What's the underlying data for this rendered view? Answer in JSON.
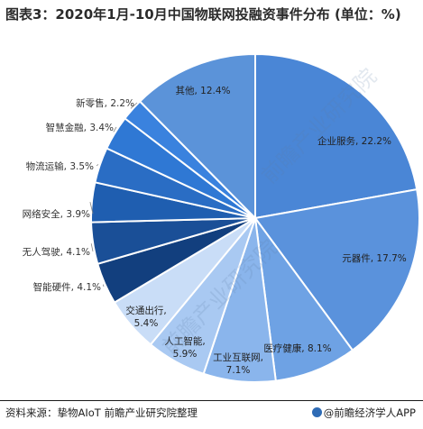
{
  "title": "图表3：2020年1月-10月中国物联网投融资事件分布 (单位：%)",
  "source": "资料来源：挚物AIoT 前瞻产业研究院整理",
  "credit": "@前瞻经济学人APP",
  "chart_data": {
    "type": "pie",
    "title": "图表3：2020年1月-10月中国物联网投融资事件分布 (单位：%)",
    "unit": "%",
    "start_angle_deg": 0,
    "direction": "clockwise",
    "slices": [
      {
        "label": "企业服务, 22.2%",
        "name": "企业服务",
        "value": 22.2,
        "color": "#4a86d6"
      },
      {
        "label": "元器件, 17.7%",
        "name": "元器件",
        "value": 17.7,
        "color": "#5a92dc"
      },
      {
        "label": "医疗健康, 8.1%",
        "name": "医疗健康",
        "value": 8.1,
        "color": "#6ea2e4"
      },
      {
        "label": "工业互联网, 7.1%",
        "name": "工业互联网",
        "value": 7.1,
        "color": "#8ab5ec"
      },
      {
        "label": "人工智能, 5.9%",
        "name": "人工智能",
        "value": 5.9,
        "color": "#a9c9f2"
      },
      {
        "label": "交通出行, 5.4%",
        "name": "交通出行",
        "value": 5.4,
        "color": "#c9ddf7"
      },
      {
        "label": "智能硬件, 4.1%",
        "name": "智能硬件",
        "value": 4.1,
        "color": "#123f7e"
      },
      {
        "label": "无人驾驶, 4.1%",
        "name": "无人驾驶",
        "value": 4.1,
        "color": "#1a4f97"
      },
      {
        "label": "网络安全, 3.9%",
        "name": "网络安全",
        "value": 3.9,
        "color": "#1f5eb0"
      },
      {
        "label": "物流运输, 3.5%",
        "name": "物流运输",
        "value": 3.5,
        "color": "#2a6dc4"
      },
      {
        "label": "智慧金融, 3.4%",
        "name": "智慧金融",
        "value": 3.4,
        "color": "#2f78d4"
      },
      {
        "label": "新零售, 2.2%",
        "name": "新零售",
        "value": 2.2,
        "color": "#3a82de"
      },
      {
        "label": "其他, 12.4%",
        "name": "其他",
        "value": 12.4,
        "color": "#5b93d9"
      }
    ]
  },
  "colors": {
    "border": "#ffffff",
    "leader_line": "#888888",
    "label_text": "#333333",
    "inner_label_text": "#222222",
    "watermark": "#5d7fa8"
  },
  "watermark": "前瞻产业研究院"
}
